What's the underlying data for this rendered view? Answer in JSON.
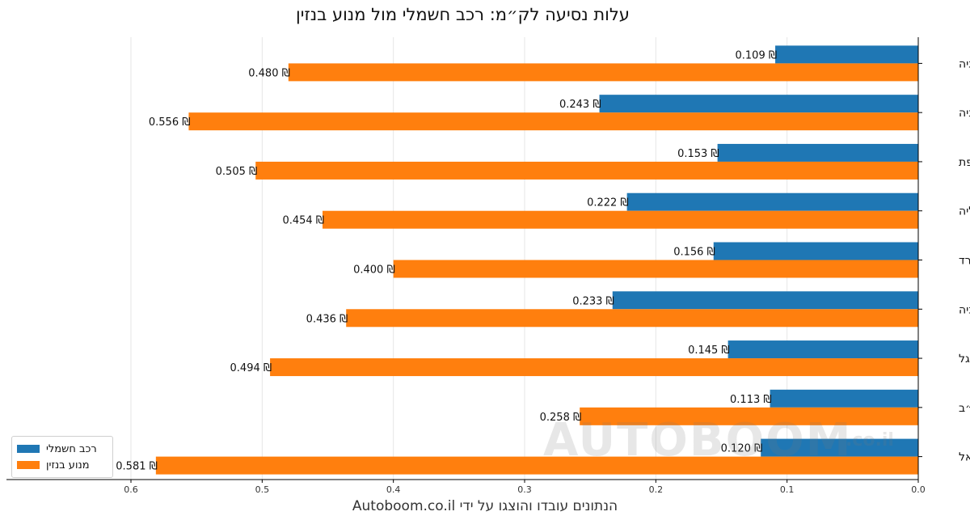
{
  "chart_data": {
    "type": "bar",
    "orientation": "horizontal",
    "title": "עלות נסיעה לק״מ: רכב חשמלי מול מנוע בנזין",
    "categories": [
      "נורווגיה",
      "גרמניה",
      "צרפת",
      "איטליה",
      "ספרד",
      "בריטניה",
      "פורטוגל",
      "ארה״ב",
      "ישראל"
    ],
    "series": [
      {
        "name": "רכב חשמלי",
        "color": "#1f77b4",
        "values": [
          0.109,
          0.243,
          0.153,
          0.222,
          0.156,
          0.233,
          0.145,
          0.113,
          0.12
        ]
      },
      {
        "name": "מנוע בנזין",
        "color": "#ff7f0e",
        "values": [
          0.48,
          0.556,
          0.505,
          0.454,
          0.4,
          0.436,
          0.494,
          0.258,
          0.581
        ]
      }
    ],
    "value_label_format": "{value} ₪",
    "currency_symbol": "₪",
    "xlim": [
      0,
      0.6
    ],
    "x_axis_inverted": true,
    "xticks": [
      0.0,
      0.1,
      0.2,
      0.3,
      0.4,
      0.5,
      0.6
    ],
    "xtick_labels": [
      "0.0",
      "0.1",
      "0.2",
      "0.3",
      "0.4",
      "0.5",
      "0.6"
    ],
    "grid": "vertical",
    "legend_position": "bottom-left",
    "xlabel": "",
    "ylabel": ""
  },
  "legend": {
    "electric_label": "רכב חשמלי",
    "petrol_label": "מנוע בנזין"
  },
  "watermark": {
    "text": "AUTOBOOM",
    "suffix": ".co.il"
  },
  "credit": "הנתונים עובדו והוצגו על ידי Autoboom.co.il"
}
